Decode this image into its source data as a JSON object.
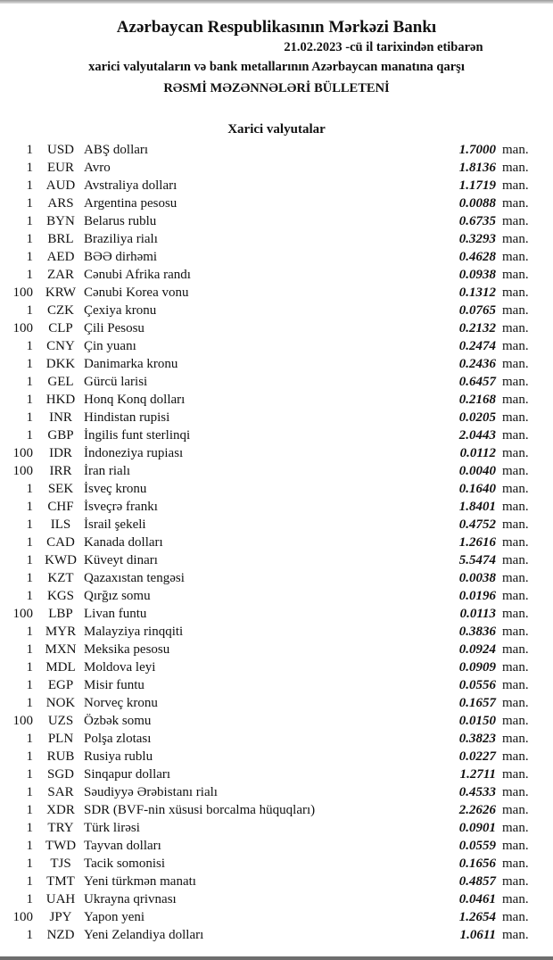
{
  "header": {
    "title": "Azərbaycan Respublikasının Mərkəzi Bankı",
    "date_line": "21.02.2023 -cü il tarixindən etibarən",
    "subtitle": "xarici valyutaların və bank metallarının Azərbaycan manatına qarşı",
    "bulletin": "RƏSMİ MƏZƏNNƏLƏRİ BÜLLETENİ",
    "section": "Xarici valyutalar"
  },
  "currency_unit": "man.",
  "rates": [
    {
      "nominal": "1",
      "code": "USD",
      "name": "ABŞ dolları",
      "rate": "1.7000"
    },
    {
      "nominal": "1",
      "code": "EUR",
      "name": "Avro",
      "rate": "1.8136"
    },
    {
      "nominal": "1",
      "code": "AUD",
      "name": "Avstraliya dolları",
      "rate": "1.1719"
    },
    {
      "nominal": "1",
      "code": "ARS",
      "name": "Argentina pesosu",
      "rate": "0.0088"
    },
    {
      "nominal": "1",
      "code": "BYN",
      "name": "Belarus rublu",
      "rate": "0.6735"
    },
    {
      "nominal": "1",
      "code": "BRL",
      "name": "Braziliya rialı",
      "rate": "0.3293"
    },
    {
      "nominal": "1",
      "code": "AED",
      "name": "BƏƏ dirhəmi",
      "rate": "0.4628"
    },
    {
      "nominal": "1",
      "code": "ZAR",
      "name": "Cənubi Afrika randı",
      "rate": "0.0938"
    },
    {
      "nominal": "100",
      "code": "KRW",
      "name": "Cənubi Korea vonu",
      "rate": "0.1312"
    },
    {
      "nominal": "1",
      "code": "CZK",
      "name": "Çexiya kronu",
      "rate": "0.0765"
    },
    {
      "nominal": "100",
      "code": "CLP",
      "name": "Çili Pesosu",
      "rate": "0.2132"
    },
    {
      "nominal": "1",
      "code": "CNY",
      "name": "Çin yuanı",
      "rate": "0.2474"
    },
    {
      "nominal": "1",
      "code": "DKK",
      "name": "Danimarka kronu",
      "rate": "0.2436"
    },
    {
      "nominal": "1",
      "code": "GEL",
      "name": "Gürcü larisi",
      "rate": "0.6457"
    },
    {
      "nominal": "1",
      "code": "HKD",
      "name": "Honq Konq dolları",
      "rate": "0.2168"
    },
    {
      "nominal": "1",
      "code": "INR",
      "name": "Hindistan rupisi",
      "rate": "0.0205"
    },
    {
      "nominal": "1",
      "code": "GBP",
      "name": "İngilis funt sterlinqi",
      "rate": "2.0443"
    },
    {
      "nominal": "100",
      "code": "IDR",
      "name": "İndoneziya rupiası",
      "rate": "0.0112"
    },
    {
      "nominal": "100",
      "code": "IRR",
      "name": "İran rialı",
      "rate": "0.0040"
    },
    {
      "nominal": "1",
      "code": "SEK",
      "name": "İsveç kronu",
      "rate": "0.1640"
    },
    {
      "nominal": "1",
      "code": "CHF",
      "name": "İsveçrə frankı",
      "rate": "1.8401"
    },
    {
      "nominal": "1",
      "code": "ILS",
      "name": "İsrail şekeli",
      "rate": "0.4752"
    },
    {
      "nominal": "1",
      "code": "CAD",
      "name": "Kanada dolları",
      "rate": "1.2616"
    },
    {
      "nominal": "1",
      "code": "KWD",
      "name": "Küveyt dinarı",
      "rate": "5.5474"
    },
    {
      "nominal": "1",
      "code": "KZT",
      "name": "Qazaxıstan tengəsi",
      "rate": "0.0038"
    },
    {
      "nominal": "1",
      "code": "KGS",
      "name": "Qırğız somu",
      "rate": "0.0196"
    },
    {
      "nominal": "100",
      "code": "LBP",
      "name": "Livan funtu",
      "rate": "0.0113"
    },
    {
      "nominal": "1",
      "code": "MYR",
      "name": "Malayziya rinqqiti",
      "rate": "0.3836"
    },
    {
      "nominal": "1",
      "code": "MXN",
      "name": "Meksika pesosu",
      "rate": "0.0924"
    },
    {
      "nominal": "1",
      "code": "MDL",
      "name": "Moldova leyi",
      "rate": "0.0909"
    },
    {
      "nominal": "1",
      "code": "EGP",
      "name": "Misir funtu",
      "rate": "0.0556"
    },
    {
      "nominal": "1",
      "code": "NOK",
      "name": "Norveç kronu",
      "rate": "0.1657"
    },
    {
      "nominal": "100",
      "code": "UZS",
      "name": "Özbək somu",
      "rate": "0.0150"
    },
    {
      "nominal": "1",
      "code": "PLN",
      "name": "Polşa zlotası",
      "rate": "0.3823"
    },
    {
      "nominal": "1",
      "code": "RUB",
      "name": "Rusiya rublu",
      "rate": "0.0227"
    },
    {
      "nominal": "1",
      "code": "SGD",
      "name": "Sinqapur dolları",
      "rate": "1.2711"
    },
    {
      "nominal": "1",
      "code": "SAR",
      "name": "Səudiyyə Ərəbistanı rialı",
      "rate": "0.4533"
    },
    {
      "nominal": "1",
      "code": "XDR",
      "name": "SDR (BVF-nin xüsusi borcalma hüquqları)",
      "rate": "2.2626"
    },
    {
      "nominal": "1",
      "code": "TRY",
      "name": "Türk lirəsi",
      "rate": "0.0901"
    },
    {
      "nominal": "1",
      "code": "TWD",
      "name": "Tayvan dolları",
      "rate": "0.0559"
    },
    {
      "nominal": "1",
      "code": "TJS",
      "name": "Tacik somonisi",
      "rate": "0.1656"
    },
    {
      "nominal": "1",
      "code": "TMT",
      "name": "Yeni türkmən manatı",
      "rate": "0.4857"
    },
    {
      "nominal": "1",
      "code": "UAH",
      "name": "Ukrayna qrivnası",
      "rate": "0.0461"
    },
    {
      "nominal": "100",
      "code": "JPY",
      "name": "Yapon yeni",
      "rate": "1.2654"
    },
    {
      "nominal": "1",
      "code": "NZD",
      "name": "Yeni Zelandiya dolları",
      "rate": "1.0611"
    }
  ]
}
